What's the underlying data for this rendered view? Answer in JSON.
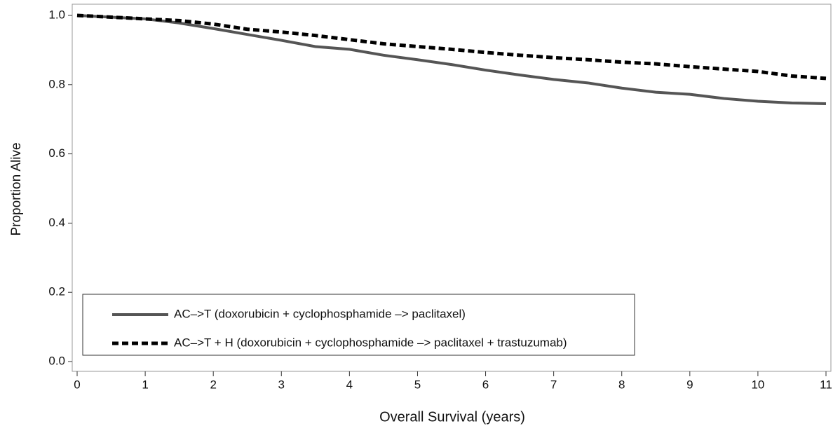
{
  "chart_data": {
    "type": "line",
    "xlabel": "Overall Survival (years)",
    "ylabel": "Proportion Alive",
    "x": [
      0,
      0.5,
      1,
      1.5,
      2,
      2.5,
      3,
      3.5,
      4,
      4.5,
      5,
      5.5,
      6,
      6.5,
      7,
      7.5,
      8,
      8.5,
      9,
      9.5,
      10,
      10.5,
      11
    ],
    "series": [
      {
        "name": "AC–>T (doxorubicin + cyclophosphamide –> paclitaxel)",
        "color": "#555555",
        "dash": false,
        "values": [
          1.0,
          0.995,
          0.99,
          0.978,
          0.962,
          0.945,
          0.928,
          0.91,
          0.902,
          0.885,
          0.872,
          0.858,
          0.842,
          0.828,
          0.815,
          0.805,
          0.79,
          0.778,
          0.772,
          0.76,
          0.752,
          0.747,
          0.745
        ]
      },
      {
        "name": "AC–>T + H (doxorubicin + cyclophosphamide –> paclitaxel + trastuzumab)",
        "color": "#000000",
        "dash": true,
        "values": [
          1.0,
          0.995,
          0.99,
          0.985,
          0.975,
          0.96,
          0.952,
          0.942,
          0.93,
          0.918,
          0.91,
          0.902,
          0.893,
          0.885,
          0.878,
          0.872,
          0.865,
          0.86,
          0.852,
          0.845,
          0.838,
          0.825,
          0.818
        ]
      }
    ],
    "xlim": [
      0,
      11
    ],
    "xticks": [
      0,
      1,
      2,
      3,
      4,
      5,
      6,
      7,
      8,
      9,
      10,
      11
    ],
    "ylim": [
      0,
      1
    ],
    "yticks": [
      {
        "value": 0,
        "label": "0.0"
      },
      0.2,
      0.4,
      0.6,
      0.8,
      {
        "value": 1,
        "label": "1.0"
      }
    ],
    "grid": false,
    "legend": "lower left"
  }
}
